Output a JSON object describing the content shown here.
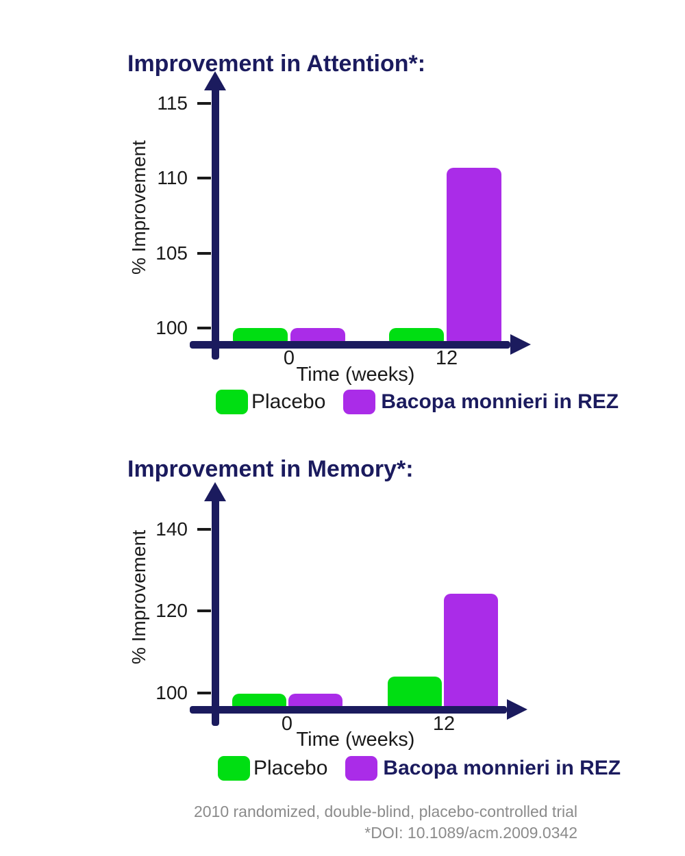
{
  "colors": {
    "navy": "#1b1b5e",
    "green": "#00DE12",
    "purple": "#AA2CE8",
    "tick_text": "#1a1a1a",
    "footer_gray": "#8b8b8b",
    "background": "#ffffff"
  },
  "chart_data": [
    {
      "type": "bar",
      "title": "Improvement in Attention*:",
      "xlabel": "Time (weeks)",
      "ylabel": "% Improvement",
      "categories": [
        "0",
        "12"
      ],
      "series": [
        {
          "name": "Placebo",
          "color": "#00DE12",
          "values": [
            100,
            100
          ]
        },
        {
          "name": "Bacopa monnieri in REZ",
          "color": "#AA2CE8",
          "values": [
            100,
            110.7
          ]
        }
      ],
      "yticks": [
        100,
        105,
        110,
        115
      ],
      "ylim": [
        99,
        116.5
      ],
      "grid": false,
      "legend_position": "bottom"
    },
    {
      "type": "bar",
      "title": "Improvement in Memory*:",
      "xlabel": "Time (weeks)",
      "ylabel": "% Improvement",
      "categories": [
        "0",
        "12"
      ],
      "series": [
        {
          "name": "Placebo",
          "color": "#00DE12",
          "values": [
            99.9,
            104
          ]
        },
        {
          "name": "Bacopa monnieri in REZ",
          "color": "#AA2CE8",
          "values": [
            99.9,
            124.3
          ]
        }
      ],
      "yticks": [
        100,
        120,
        140
      ],
      "ylim": [
        96,
        148
      ],
      "grid": false,
      "legend_position": "bottom"
    }
  ],
  "footer": {
    "line1": "2010 randomized, double-blind, placebo-controlled trial",
    "line2": "*DOI: 10.1089/acm.2009.0342"
  }
}
